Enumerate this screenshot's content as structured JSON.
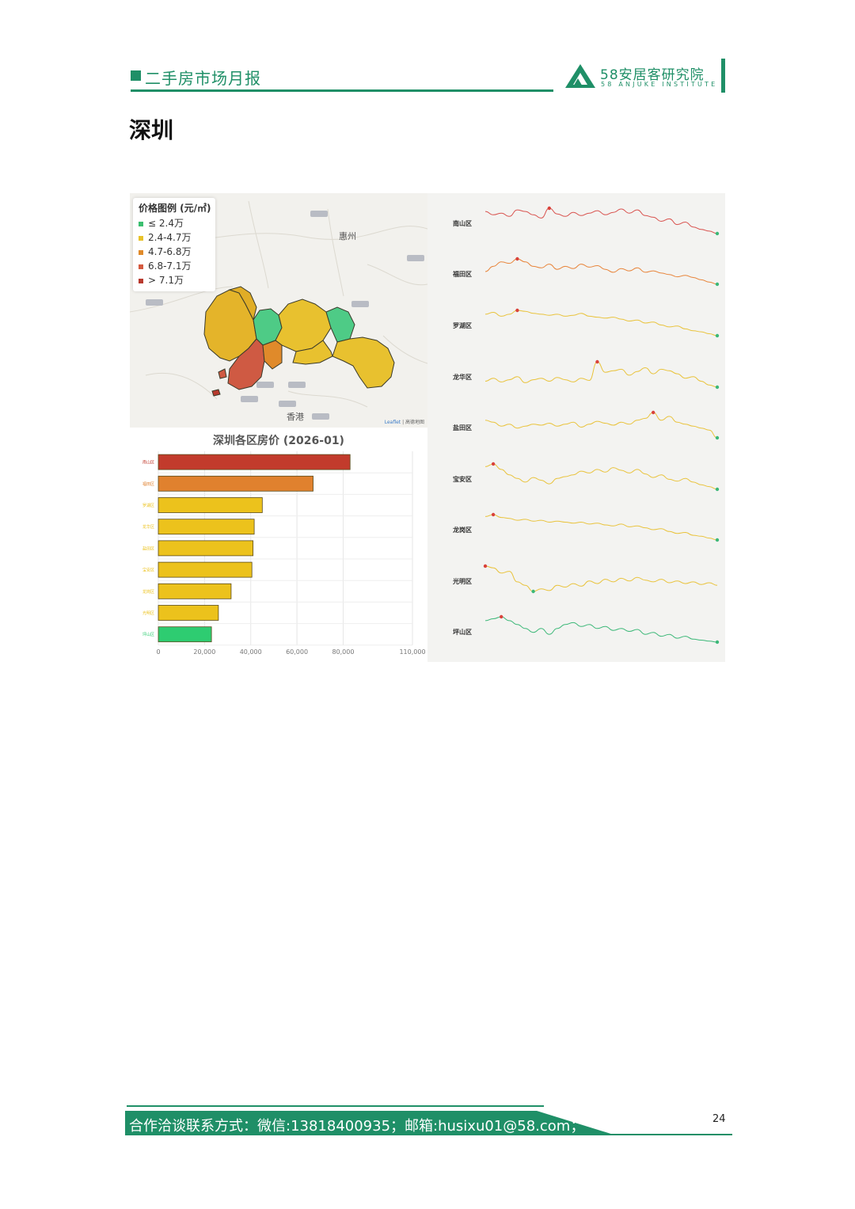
{
  "header": {
    "title": "二手房市场月报",
    "logo_cn": "58安居客研究院",
    "logo_en": "58 ANJUKE INSTITUTE"
  },
  "city_title": "深圳",
  "map": {
    "legend_title": "价格图例 (元/㎡)",
    "legend": [
      {
        "label": "≤ 2.4万",
        "color": "#3bbf6f"
      },
      {
        "label": "2.4-4.7万",
        "color": "#e8c22a"
      },
      {
        "label": "4.7-6.8万",
        "color": "#e08a2a"
      },
      {
        "label": "6.8-7.1万",
        "color": "#d45a3f"
      },
      {
        "label": "> 7.1万",
        "color": "#b8392d"
      }
    ],
    "labels": [
      {
        "text": "惠州"
      },
      {
        "text": "香港"
      }
    ],
    "attribution_leaflet": "Leaflet",
    "attribution_rest": " | 高德地图"
  },
  "chart_data": [
    {
      "type": "bar",
      "title": "深圳各区房价 (2026-01)",
      "categories": [
        "南山区",
        "福田区",
        "罗湖区",
        "龙华区",
        "盐田区",
        "宝安区",
        "龙岗区",
        "光明区",
        "坪山区"
      ],
      "values": [
        83000,
        67000,
        45000,
        41500,
        41000,
        40500,
        31500,
        26000,
        23000
      ],
      "colors": [
        "#c23b2c",
        "#e0812e",
        "#ecc21c",
        "#ecc21c",
        "#ecc21c",
        "#ecc21c",
        "#ecc21c",
        "#ecc21c",
        "#2ecc71"
      ],
      "x_ticks": [
        0,
        20000,
        40000,
        60000,
        80000,
        110000
      ],
      "x_tick_labels": [
        "0",
        "20,000",
        "40,000",
        "60,000",
        "80,000",
        "110,000"
      ],
      "xlim": [
        0,
        110000
      ],
      "grid": true
    },
    {
      "type": "line",
      "series": [
        {
          "name": "南山区",
          "color": "#d9534f",
          "values": [
            52,
            48,
            50,
            46,
            54,
            52,
            48,
            44,
            56,
            49,
            46,
            51,
            47,
            50,
            53,
            48,
            51,
            55,
            50,
            54,
            47,
            45,
            40,
            43,
            36,
            39,
            33,
            30,
            28,
            25
          ],
          "max_index": 8,
          "min_index": 29
        },
        {
          "name": "福田区",
          "color": "#e8853b",
          "values": [
            45,
            52,
            58,
            56,
            62,
            58,
            52,
            50,
            55,
            48,
            52,
            49,
            55,
            51,
            53,
            48,
            44,
            49,
            46,
            50,
            44,
            46,
            43,
            41,
            38,
            40,
            37,
            34,
            31,
            28
          ],
          "max_index": 4,
          "min_index": 29
        },
        {
          "name": "罗湖区",
          "color": "#e9c33c",
          "values": [
            58,
            60,
            56,
            58,
            62,
            61,
            59,
            58,
            57,
            58,
            56,
            57,
            59,
            56,
            55,
            54,
            55,
            53,
            51,
            52,
            49,
            50,
            47,
            45,
            46,
            43,
            41,
            40,
            38,
            36
          ],
          "max_index": 4,
          "min_index": 29
        },
        {
          "name": "龙华区",
          "color": "#e9c33c",
          "values": [
            36,
            40,
            35,
            38,
            42,
            34,
            38,
            40,
            36,
            41,
            38,
            35,
            40,
            37,
            62,
            48,
            50,
            52,
            44,
            49,
            54,
            46,
            52,
            50,
            46,
            40,
            42,
            36,
            31,
            28
          ],
          "max_index": 14,
          "min_index": 29
        },
        {
          "name": "盐田区",
          "color": "#e9c33c",
          "values": [
            44,
            42,
            38,
            40,
            36,
            38,
            40,
            39,
            41,
            38,
            40,
            42,
            37,
            40,
            43,
            41,
            39,
            42,
            40,
            44,
            46,
            52,
            44,
            48,
            42,
            40,
            38,
            36,
            34,
            26
          ],
          "max_index": 21,
          "min_index": 29
        },
        {
          "name": "宝安区",
          "color": "#e9c33c",
          "values": [
            55,
            58,
            52,
            46,
            42,
            38,
            43,
            40,
            36,
            42,
            44,
            46,
            50,
            48,
            52,
            49,
            54,
            51,
            48,
            52,
            47,
            43,
            46,
            41,
            39,
            42,
            38,
            35,
            33,
            30
          ],
          "max_index": 1,
          "min_index": 29
        },
        {
          "name": "龙岗区",
          "color": "#e9c33c",
          "values": [
            56,
            58,
            55,
            54,
            52,
            53,
            51,
            52,
            50,
            51,
            50,
            49,
            50,
            48,
            49,
            47,
            46,
            48,
            45,
            46,
            44,
            42,
            43,
            40,
            38,
            39,
            36,
            35,
            33,
            31
          ],
          "max_index": 1,
          "min_index": 29
        },
        {
          "name": "光明区",
          "color": "#e9c33c",
          "values": [
            62,
            60,
            54,
            56,
            44,
            40,
            33,
            36,
            34,
            40,
            38,
            42,
            39,
            45,
            42,
            47,
            44,
            48,
            45,
            49,
            46,
            44,
            47,
            43,
            45,
            42,
            44,
            41,
            43,
            40
          ],
          "max_index": 0,
          "min_index": 6
        },
        {
          "name": "坪山区",
          "color": "#3cb878",
          "values": [
            44,
            46,
            48,
            44,
            40,
            36,
            32,
            36,
            30,
            36,
            40,
            42,
            38,
            40,
            36,
            38,
            34,
            36,
            33,
            35,
            30,
            32,
            28,
            30,
            26,
            28,
            25,
            24,
            23,
            22
          ],
          "max_index": 2,
          "min_index": 29
        }
      ],
      "max_marker_color": "#d9413a",
      "min_marker_color": "#3cb878"
    }
  ],
  "footer": {
    "contact": "合作洽谈联系方式：微信:13818400935；邮箱:husixu01@58.com；",
    "page_number": "24"
  },
  "colors": {
    "brand": "#1f8f67"
  }
}
